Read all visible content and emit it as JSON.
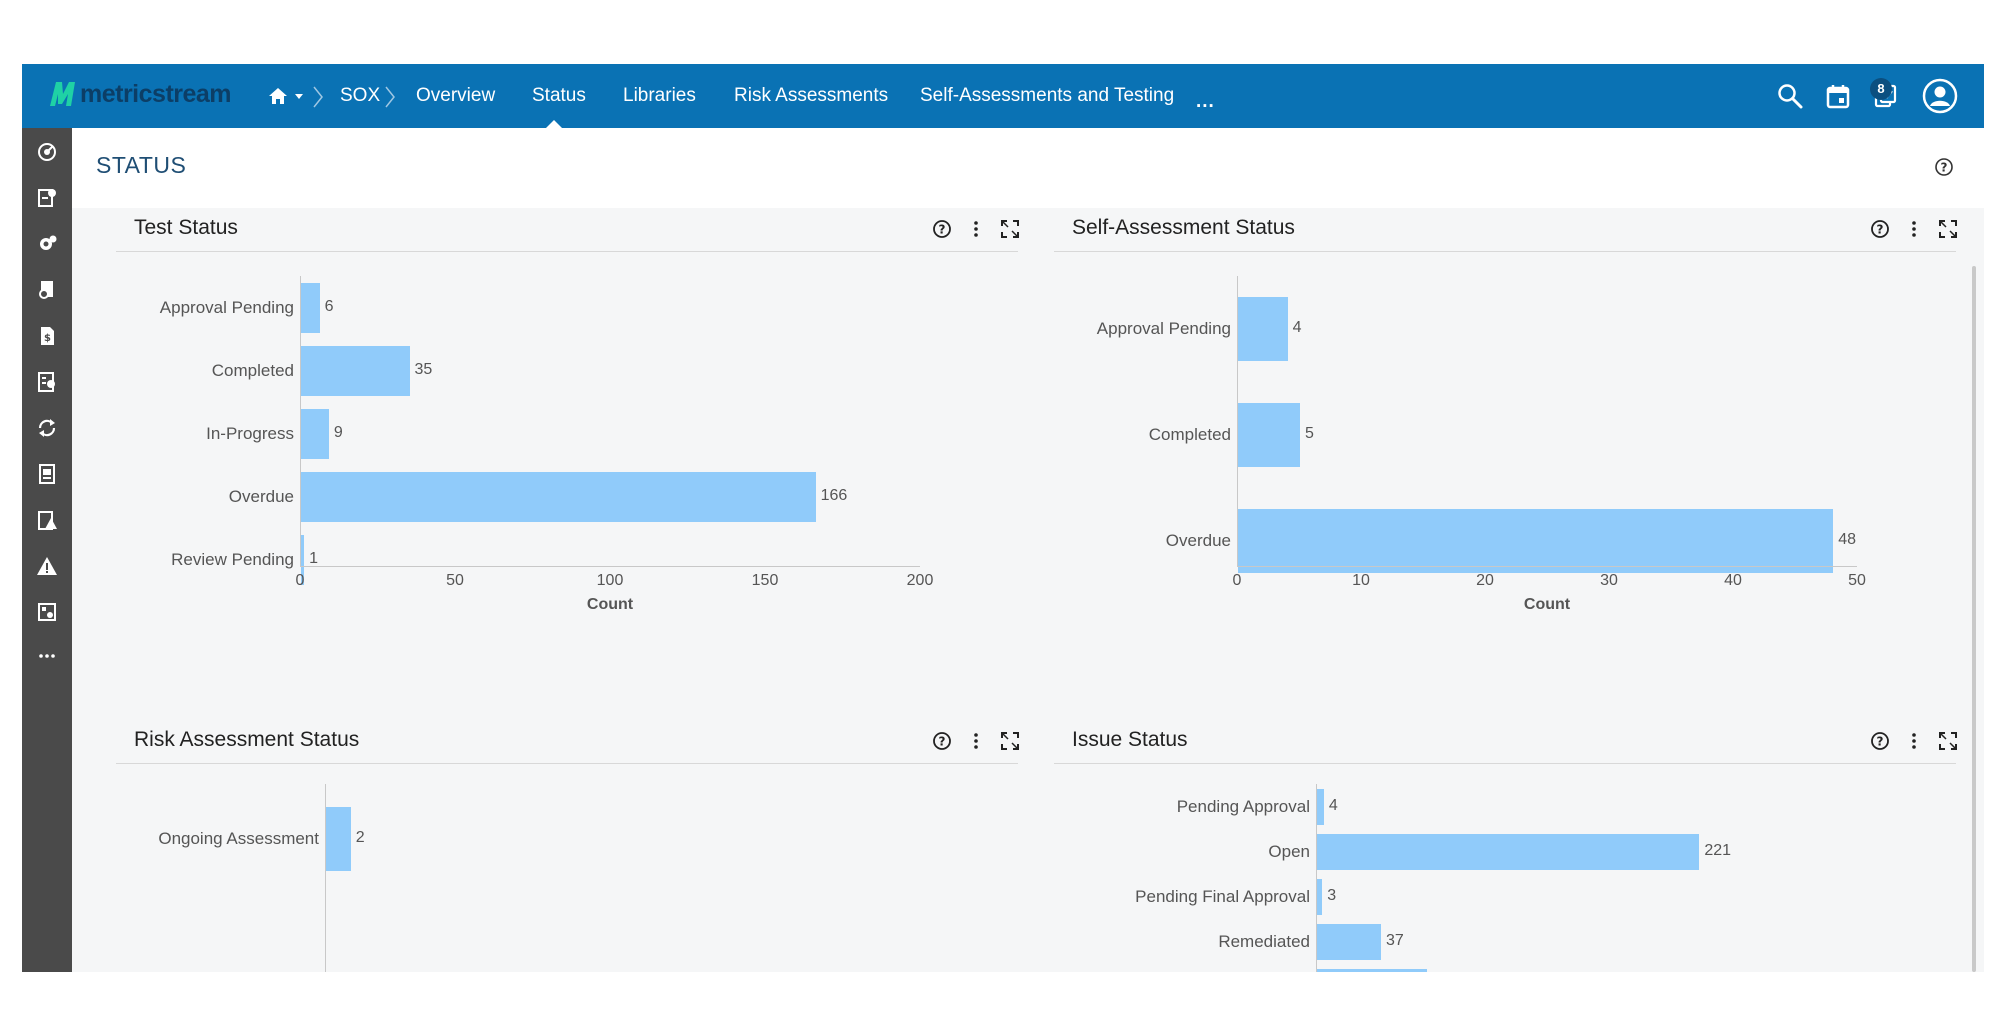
{
  "brand": {
    "name": "metricstream",
    "color": "#0a72b4"
  },
  "nav": {
    "home_icon": "home-icon",
    "items": [
      {
        "label": "SOX"
      },
      {
        "label": "Overview"
      },
      {
        "label": "Status",
        "active": true
      },
      {
        "label": "Libraries"
      },
      {
        "label": "Risk Assessments"
      },
      {
        "label": "Self-Assessments and Testing"
      },
      {
        "label": "..."
      }
    ],
    "notification_count": "8"
  },
  "page": {
    "title": "STATUS"
  },
  "panels": [
    {
      "title": "Test Status",
      "chart_data": {
        "type": "bar",
        "orientation": "horizontal",
        "categories": [
          "Approval Pending",
          "Completed",
          "In-Progress",
          "Overdue",
          "Review Pending"
        ],
        "values": [
          6,
          35,
          9,
          166,
          1
        ],
        "xlabel": "Count",
        "xlim": [
          0,
          200
        ],
        "ticks": [
          0,
          50,
          100,
          150,
          200
        ],
        "color": "#90cbfa"
      }
    },
    {
      "title": "Self-Assessment Status",
      "chart_data": {
        "type": "bar",
        "orientation": "horizontal",
        "categories": [
          "Approval Pending",
          "Completed",
          "Overdue"
        ],
        "values": [
          4,
          5,
          48
        ],
        "xlabel": "Count",
        "xlim": [
          0,
          50
        ],
        "ticks": [
          0,
          10,
          20,
          30,
          40,
          50
        ],
        "color": "#90cbfa"
      }
    },
    {
      "title": "Risk Assessment Status",
      "chart_data": {
        "type": "bar",
        "orientation": "horizontal",
        "categories": [
          "Ongoing Assessment"
        ],
        "values": [
          2
        ],
        "xlim": [
          0,
          50
        ],
        "color": "#90cbfa"
      }
    },
    {
      "title": "Issue Status",
      "chart_data": {
        "type": "bar",
        "orientation": "horizontal",
        "categories": [
          "Pending Approval",
          "Open",
          "Pending Final Approval",
          "Remediated"
        ],
        "values": [
          4,
          221,
          3,
          37
        ],
        "xlim": [
          0,
          300
        ],
        "color": "#90cbfa"
      }
    }
  ]
}
